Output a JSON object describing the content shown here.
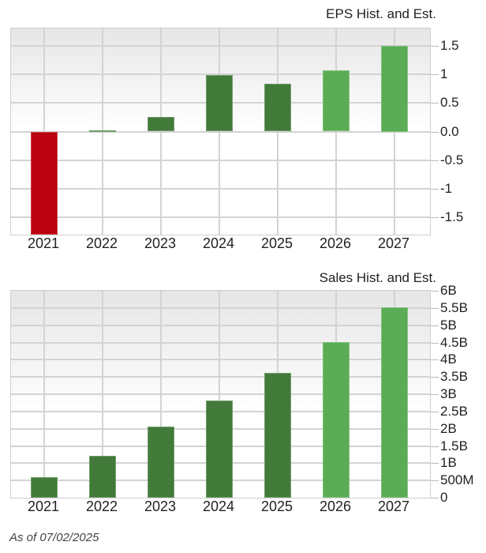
{
  "chart_data": [
    {
      "type": "bar",
      "title": "EPS Hist. and Est.",
      "categories": [
        "2021",
        "2022",
        "2023",
        "2024",
        "2025",
        "2026",
        "2027"
      ],
      "values": [
        -1.85,
        0.02,
        0.26,
        0.99,
        0.83,
        1.07,
        1.5
      ],
      "kind": [
        "historical",
        "historical",
        "historical",
        "historical",
        "historical",
        "estimate",
        "estimate"
      ],
      "xlabel": "",
      "ylabel": "",
      "yticks": [
        "1.5",
        "1",
        "0.5",
        "0.0",
        "-0.5",
        "-1",
        "-1.5"
      ],
      "ylim": [
        -1.8,
        1.8
      ],
      "grid": true,
      "legend": null,
      "note": "2021 bar extends below the visible axis (clipped)"
    },
    {
      "type": "bar",
      "title": "Sales Hist. and Est.",
      "categories": [
        "2021",
        "2022",
        "2023",
        "2024",
        "2025",
        "2026",
        "2027"
      ],
      "values": [
        600000000,
        1220000000,
        2060000000,
        2820000000,
        3620000000,
        4510000000,
        5520000000
      ],
      "kind": [
        "historical",
        "historical",
        "historical",
        "historical",
        "historical",
        "estimate",
        "estimate"
      ],
      "xlabel": "",
      "ylabel": "",
      "yticks": [
        "6B",
        "5.5B",
        "5B",
        "4.5B",
        "4B",
        "3.5B",
        "3B",
        "2.5B",
        "2B",
        "1.5B",
        "1B",
        "500M",
        "0"
      ],
      "ylim": [
        0,
        6000000000
      ],
      "grid": true,
      "legend": null
    }
  ],
  "colors": {
    "historical": "#427a3a",
    "estimate": "#5aac55",
    "negative": "#bb0010"
  },
  "eps": {
    "title": "EPS Hist. and Est.",
    "years": [
      "2021",
      "2022",
      "2023",
      "2024",
      "2025",
      "2026",
      "2027"
    ],
    "yticks": [
      "1.5",
      "1",
      "0.5",
      "0.0",
      "-0.5",
      "-1",
      "-1.5"
    ]
  },
  "sales": {
    "title": "Sales Hist. and Est.",
    "years": [
      "2021",
      "2022",
      "2023",
      "2024",
      "2025",
      "2026",
      "2027"
    ],
    "yticks": [
      "6B",
      "5.5B",
      "5B",
      "4.5B",
      "4B",
      "3.5B",
      "3B",
      "2.5B",
      "2B",
      "1.5B",
      "1B",
      "500M",
      "0"
    ]
  },
  "footer": {
    "as_of": "As of 07/02/2025"
  }
}
